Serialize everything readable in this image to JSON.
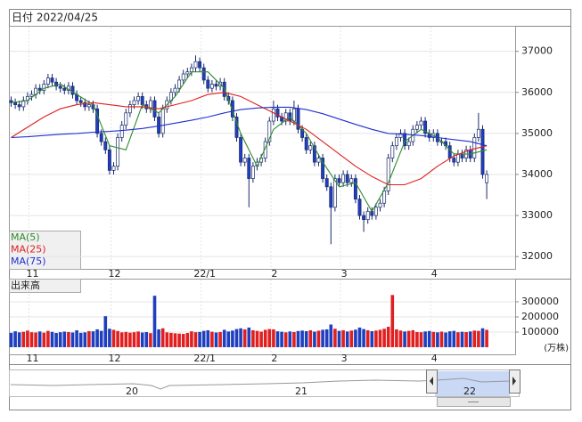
{
  "chart_data": {
    "type": "candlestick",
    "date_label": "日付 2022/04/25",
    "categories": [
      null,
      null,
      null,
      null,
      null,
      "11",
      null,
      null,
      null,
      null,
      null,
      null,
      null,
      null,
      null,
      null,
      null,
      null,
      null,
      null,
      null,
      null,
      null,
      null,
      null,
      "12",
      null,
      null,
      null,
      null,
      null,
      null,
      null,
      null,
      null,
      null,
      null,
      null,
      null,
      null,
      null,
      null,
      null,
      null,
      null,
      null,
      null,
      "22/1",
      null,
      null,
      null,
      null,
      null,
      null,
      null,
      null,
      null,
      null,
      null,
      null,
      null,
      null,
      null,
      null,
      "2",
      null,
      null,
      null,
      null,
      null,
      null,
      null,
      null,
      null,
      null,
      null,
      null,
      null,
      null,
      null,
      null,
      "3",
      null,
      null,
      null,
      null,
      null,
      null,
      null,
      null,
      null,
      null,
      null,
      null,
      null,
      null,
      null,
      null,
      null,
      null,
      null,
      null,
      null,
      "4",
      null,
      null,
      null,
      null,
      null,
      null,
      null,
      null,
      null,
      null,
      null,
      null,
      null
    ],
    "ohlc": [
      [
        35800,
        35900,
        35650,
        35750
      ],
      [
        35750,
        35850,
        35600,
        35700
      ],
      [
        35700,
        35800,
        35550,
        35650
      ],
      [
        35650,
        35900,
        35550,
        35800
      ],
      [
        35800,
        36000,
        35700,
        35900
      ],
      [
        35900,
        36050,
        35800,
        35950
      ],
      [
        35950,
        36200,
        35850,
        36100
      ],
      [
        36100,
        36200,
        35950,
        36050
      ],
      [
        36050,
        36300,
        35950,
        36200
      ],
      [
        36200,
        36450,
        36100,
        36350
      ],
      [
        36350,
        36450,
        36150,
        36250
      ],
      [
        36250,
        36350,
        36050,
        36150
      ],
      [
        36150,
        36250,
        36000,
        36100
      ],
      [
        36100,
        36200,
        35950,
        36050
      ],
      [
        36050,
        36250,
        35950,
        36150
      ],
      [
        36150,
        36250,
        35850,
        35950
      ],
      [
        35950,
        36050,
        35700,
        35800
      ],
      [
        35800,
        35900,
        35650,
        35750
      ],
      [
        35750,
        35850,
        35550,
        35650
      ],
      [
        35650,
        35800,
        35550,
        35700
      ],
      [
        35700,
        35800,
        35500,
        35600
      ],
      [
        35600,
        35700,
        34900,
        35000
      ],
      [
        35000,
        35100,
        34700,
        34800
      ],
      [
        34800,
        34900,
        34500,
        34600
      ],
      [
        34600,
        34700,
        34000,
        34100
      ],
      [
        34100,
        34300,
        34000,
        34200
      ],
      [
        34200,
        35000,
        34100,
        34900
      ],
      [
        34900,
        35300,
        34800,
        35200
      ],
      [
        35200,
        35600,
        35100,
        35500
      ],
      [
        35500,
        35800,
        35400,
        35700
      ],
      [
        35700,
        35900,
        35600,
        35800
      ],
      [
        35800,
        36000,
        35700,
        35900
      ],
      [
        35900,
        36000,
        35600,
        35700
      ],
      [
        35700,
        35800,
        35500,
        35600
      ],
      [
        35600,
        35900,
        35500,
        35800
      ],
      [
        35800,
        35900,
        35300,
        35400
      ],
      [
        35400,
        35500,
        34900,
        35000
      ],
      [
        35000,
        35700,
        34900,
        35600
      ],
      [
        35600,
        35900,
        35500,
        35800
      ],
      [
        35800,
        36100,
        35700,
        36000
      ],
      [
        36000,
        36200,
        35900,
        36100
      ],
      [
        36100,
        36400,
        36000,
        36300
      ],
      [
        36300,
        36550,
        36200,
        36450
      ],
      [
        36450,
        36600,
        36350,
        36500
      ],
      [
        36500,
        36700,
        36400,
        36600
      ],
      [
        36600,
        36900,
        36500,
        36750
      ],
      [
        36750,
        36850,
        36500,
        36600
      ],
      [
        36600,
        36700,
        36200,
        36300
      ],
      [
        36300,
        36400,
        36000,
        36100
      ],
      [
        36100,
        36300,
        36000,
        36200
      ],
      [
        36200,
        36300,
        36050,
        36150
      ],
      [
        36150,
        36350,
        36050,
        36250
      ],
      [
        36250,
        36350,
        35800,
        35900
      ],
      [
        35900,
        36000,
        35700,
        35800
      ],
      [
        35800,
        35900,
        35300,
        35400
      ],
      [
        35400,
        35500,
        34800,
        34900
      ],
      [
        34900,
        35000,
        34200,
        34300
      ],
      [
        34300,
        34500,
        34200,
        34400
      ],
      [
        34400,
        34500,
        33200,
        33900
      ],
      [
        33900,
        34300,
        33800,
        34200
      ],
      [
        34200,
        34400,
        34100,
        34300
      ],
      [
        34300,
        34500,
        34200,
        34400
      ],
      [
        34400,
        34900,
        34300,
        34800
      ],
      [
        34800,
        35400,
        34700,
        35300
      ],
      [
        35300,
        35800,
        35200,
        35600
      ],
      [
        35600,
        35700,
        35300,
        35400
      ],
      [
        35400,
        35500,
        35200,
        35300
      ],
      [
        35300,
        35600,
        35200,
        35500
      ],
      [
        35500,
        35600,
        35200,
        35300
      ],
      [
        35300,
        35800,
        35200,
        35600
      ],
      [
        35600,
        35700,
        35000,
        35100
      ],
      [
        35100,
        35200,
        34800,
        34900
      ],
      [
        34900,
        35000,
        34500,
        34600
      ],
      [
        34600,
        34800,
        34500,
        34700
      ],
      [
        34700,
        34800,
        34200,
        34300
      ],
      [
        34300,
        34500,
        34200,
        34400
      ],
      [
        34400,
        34500,
        33800,
        33900
      ],
      [
        33900,
        34000,
        33600,
        33700
      ],
      [
        33700,
        33800,
        32300,
        33200
      ],
      [
        33200,
        34000,
        33100,
        33900
      ],
      [
        33900,
        34000,
        33700,
        33800
      ],
      [
        33800,
        34100,
        33700,
        34000
      ],
      [
        34000,
        34100,
        33700,
        33800
      ],
      [
        33800,
        34000,
        33700,
        33900
      ],
      [
        33900,
        34000,
        33300,
        33400
      ],
      [
        33400,
        33500,
        32900,
        33000
      ],
      [
        33000,
        33100,
        32600,
        32900
      ],
      [
        32900,
        33200,
        32800,
        33100
      ],
      [
        33100,
        33200,
        32900,
        33000
      ],
      [
        33000,
        33300,
        32900,
        33200
      ],
      [
        33200,
        33400,
        33100,
        33300
      ],
      [
        33300,
        33700,
        33200,
        33600
      ],
      [
        33600,
        34500,
        33500,
        34400
      ],
      [
        34400,
        34800,
        34300,
        34700
      ],
      [
        34700,
        35000,
        34600,
        34900
      ],
      [
        34900,
        35100,
        34800,
        35000
      ],
      [
        35000,
        35100,
        34600,
        34700
      ],
      [
        34700,
        34900,
        34600,
        34800
      ],
      [
        34800,
        35200,
        34700,
        35100
      ],
      [
        35100,
        35300,
        35000,
        35200
      ],
      [
        35200,
        35400,
        35100,
        35300
      ],
      [
        35300,
        35400,
        34900,
        35000
      ],
      [
        35000,
        35100,
        34800,
        34900
      ],
      [
        34900,
        35100,
        34800,
        35000
      ],
      [
        35000,
        35100,
        34700,
        34800
      ],
      [
        34800,
        34900,
        34700,
        34800
      ],
      [
        34800,
        34900,
        34600,
        34700
      ],
      [
        34700,
        34800,
        34300,
        34400
      ],
      [
        34400,
        34500,
        34200,
        34300
      ],
      [
        34300,
        34600,
        34200,
        34500
      ],
      [
        34500,
        34600,
        34300,
        34400
      ],
      [
        34400,
        34700,
        34300,
        34600
      ],
      [
        34600,
        34700,
        34300,
        34400
      ],
      [
        34400,
        35000,
        34300,
        34900
      ],
      [
        34900,
        35500,
        34800,
        35100
      ],
      [
        35100,
        35200,
        33900,
        34000
      ],
      [
        33800,
        34100,
        33400,
        34000
      ]
    ],
    "up_color": "#ffffff",
    "down_color": "#1f3fbf",
    "edge_color": "#1a2a6a",
    "series": [
      {
        "name": "MA(5)",
        "color": "#2e8b2e",
        "x": [
          0,
          4,
          8,
          12,
          16,
          20,
          24,
          28,
          32,
          36,
          40,
          44,
          48,
          52,
          56,
          60,
          64,
          68,
          72,
          76,
          80,
          84,
          88,
          92,
          96,
          100,
          104,
          108,
          112,
          116
        ],
        "values": [
          35750,
          35800,
          36100,
          36200,
          35950,
          35700,
          34700,
          34600,
          35700,
          35500,
          35900,
          36500,
          36500,
          36100,
          35000,
          34200,
          35100,
          35400,
          35000,
          34300,
          33700,
          33800,
          33100,
          33800,
          34800,
          35100,
          34900,
          34500,
          34500,
          34600
        ]
      },
      {
        "name": "MA(25)",
        "color": "#e02020",
        "x": [
          0,
          4,
          8,
          12,
          16,
          20,
          24,
          28,
          32,
          36,
          40,
          44,
          48,
          52,
          56,
          60,
          64,
          68,
          72,
          76,
          80,
          84,
          88,
          92,
          96,
          100,
          104,
          108,
          112,
          116
        ],
        "values": [
          34900,
          35150,
          35400,
          35600,
          35700,
          35750,
          35700,
          35650,
          35650,
          35600,
          35700,
          35800,
          35950,
          36000,
          35900,
          35700,
          35500,
          35300,
          35100,
          34800,
          34500,
          34200,
          33950,
          33750,
          33750,
          33900,
          34200,
          34450,
          34600,
          34700
        ]
      },
      {
        "name": "MA(75)",
        "color": "#1f2fd0",
        "x": [
          0,
          4,
          8,
          12,
          16,
          20,
          24,
          28,
          32,
          36,
          40,
          44,
          48,
          52,
          56,
          60,
          64,
          68,
          72,
          76,
          80,
          84,
          88,
          92,
          96,
          100,
          104,
          108,
          112,
          116
        ],
        "values": [
          34900,
          34920,
          34950,
          34980,
          35000,
          35030,
          35050,
          35080,
          35120,
          35180,
          35250,
          35320,
          35400,
          35500,
          35580,
          35620,
          35640,
          35640,
          35580,
          35480,
          35350,
          35220,
          35100,
          35000,
          34980,
          34950,
          34900,
          34850,
          34800,
          34700
        ]
      }
    ],
    "ylim": [
      31700,
      37600
    ],
    "yticks": [
      32000,
      33000,
      34000,
      35000,
      36000,
      37000
    ],
    "grid": true,
    "volume": {
      "label": "出来高",
      "unit": "(万株)",
      "up_color": "#e02020",
      "down_color": "#1f3fbf",
      "ylim": [
        0,
        450000
      ],
      "yticks": [
        100000,
        200000,
        300000
      ],
      "values": [
        95000,
        105000,
        98000,
        102000,
        110000,
        99000,
        97000,
        104000,
        96000,
        108000,
        101000,
        94000,
        99000,
        103000,
        100000,
        97000,
        112000,
        95000,
        98000,
        106000,
        105000,
        118000,
        108000,
        205000,
        122000,
        115000,
        107000,
        98000,
        101000,
        96000,
        99000,
        104000,
        97000,
        100000,
        93000,
        340000,
        118000,
        125000,
        98000,
        95000,
        92000,
        90000,
        88000,
        94000,
        105000,
        99000,
        101000,
        108000,
        112000,
        102000,
        97000,
        100000,
        115000,
        104000,
        110000,
        120000,
        125000,
        118000,
        130000,
        112000,
        108000,
        103000,
        115000,
        120000,
        118000,
        105000,
        102000,
        98000,
        104000,
        100000,
        107000,
        110000,
        106000,
        112000,
        103000,
        109000,
        115000,
        118000,
        150000,
        122000,
        108000,
        112000,
        104000,
        110000,
        116000,
        130000,
        120000,
        112000,
        106000,
        110000,
        115000,
        122000,
        135000,
        345000,
        118000,
        110000,
        104000,
        108000,
        112000,
        100000,
        99000,
        104000,
        107000,
        101000,
        98000,
        103000,
        97000,
        105000,
        108000,
        99000,
        102000,
        100000,
        104000,
        110000,
        108000,
        125000,
        115000
      ]
    },
    "navigator_labels": [
      "20",
      "21",
      "22"
    ]
  }
}
